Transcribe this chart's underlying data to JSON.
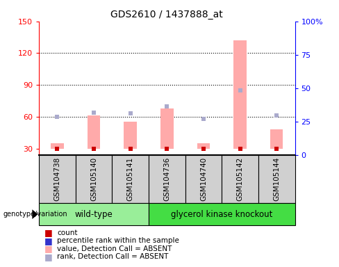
{
  "title": "GDS2610 / 1437888_at",
  "samples": [
    "GSM104738",
    "GSM105140",
    "GSM105141",
    "GSM104736",
    "GSM104740",
    "GSM105142",
    "GSM105144"
  ],
  "pink_bars": [
    35,
    61,
    55,
    68,
    35,
    132,
    48
  ],
  "blue_dots": [
    60,
    64,
    63,
    70,
    58,
    85,
    61
  ],
  "ylim_left": [
    24,
    150
  ],
  "ylim_right": [
    0,
    100
  ],
  "yticks_left": [
    30,
    60,
    90,
    120,
    150
  ],
  "yticks_right": [
    0,
    25,
    50,
    75,
    100
  ],
  "ytick_labels_right": [
    "0",
    "25",
    "50",
    "75",
    "100%"
  ],
  "grid_lines": [
    60,
    90,
    120
  ],
  "wild_type_label": "wild-type",
  "knockout_label": "glycerol kinase knockout",
  "genotype_label": "genotype/variation",
  "legend_items": [
    "count",
    "percentile rank within the sample",
    "value, Detection Call = ABSENT",
    "rank, Detection Call = ABSENT"
  ],
  "bar_bottom": 30,
  "plot_bg": "#ffffff",
  "sample_box_color": "#d0d0d0",
  "pink_color": "#ffaaaa",
  "blue_dot_color": "#aaaacc",
  "red_marker_color": "#cc0000",
  "blue_marker_color": "#3333cc",
  "wild_type_bg": "#99ee99",
  "knockout_bg": "#44dd44",
  "n_wildtype": 3,
  "n_knockout": 4
}
